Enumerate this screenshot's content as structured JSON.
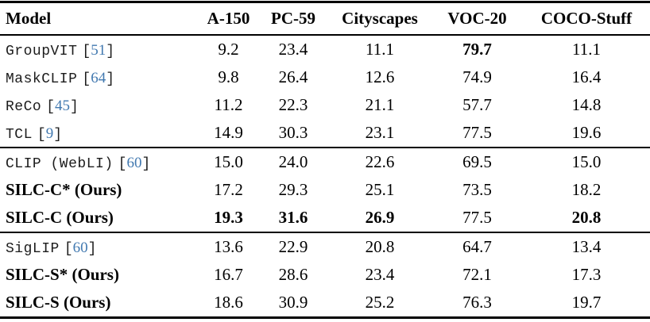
{
  "citation": {
    "open": "[",
    "close": "]"
  },
  "colors": {
    "citation_number": "#4279b0",
    "text": "#000000",
    "rule": "#000000",
    "background": "#ffffff"
  },
  "table": {
    "columns": [
      "Model",
      "A-150",
      "PC-59",
      "Cityscapes",
      "VOC-20",
      "COCO-Stuff"
    ],
    "rows": [
      {
        "model": "GroupVIT",
        "cite": "51",
        "values": [
          "9.2",
          "23.4",
          "11.1",
          "79.7",
          "11.1"
        ]
      },
      {
        "model": "MaskCLIP",
        "cite": "64",
        "values": [
          "9.8",
          "26.4",
          "12.6",
          "74.9",
          "16.4"
        ]
      },
      {
        "model": "ReCo",
        "cite": "45",
        "values": [
          "11.2",
          "22.3",
          "21.1",
          "57.7",
          "14.8"
        ]
      },
      {
        "model": "TCL",
        "cite": "9",
        "values": [
          "14.9",
          "30.3",
          "23.1",
          "77.5",
          "19.6"
        ]
      },
      {
        "model": "CLIP (WebLI)",
        "cite": "60",
        "values": [
          "15.0",
          "24.0",
          "22.6",
          "69.5",
          "15.0"
        ]
      },
      {
        "model": "SILC-C* (Ours)",
        "cite": "",
        "values": [
          "17.2",
          "29.3",
          "25.1",
          "73.5",
          "18.2"
        ]
      },
      {
        "model": "SILC-C (Ours)",
        "cite": "",
        "values": [
          "19.3",
          "31.6",
          "26.9",
          "77.5",
          "20.8"
        ]
      },
      {
        "model": "SigLIP",
        "cite": "60",
        "values": [
          "13.6",
          "22.9",
          "20.8",
          "64.7",
          "13.4"
        ]
      },
      {
        "model": "SILC-S* (Ours)",
        "cite": "",
        "values": [
          "16.7",
          "28.6",
          "23.4",
          "72.1",
          "17.3"
        ]
      },
      {
        "model": "SILC-S (Ours)",
        "cite": "",
        "values": [
          "18.6",
          "30.9",
          "25.2",
          "76.3",
          "19.7"
        ]
      }
    ]
  }
}
